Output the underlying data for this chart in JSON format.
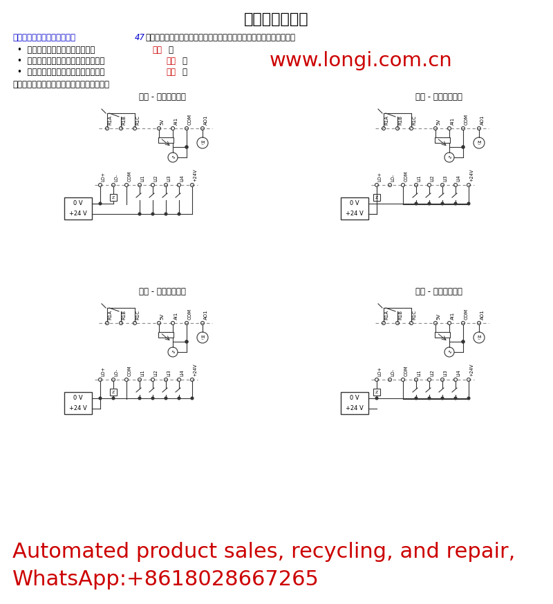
{
  "title": "控制端子接线图",
  "title_fontsize": 16,
  "background": "#ffffff",
  "website": "www.longi.com.cn",
  "note_text": "注：仅当下次控制端子加电时，修改才生效。",
  "diagram_titles": [
    "源型 - 使用外部电源",
    "漏型 - 使用外部电源",
    "源型 - 使用内部电源",
    "漏型 - 使用内部电源"
  ],
  "footer_line1": "Automated product sales, recycling, and repair,",
  "footer_line2": "WhatsApp:+8618028667265",
  "footer_color": "#cc0000",
  "footer_fontsize": 22,
  "line_color": "#333333",
  "dashed_color": "#888888",
  "red_color": "#cc0000",
  "blue_color": "#0000cc"
}
